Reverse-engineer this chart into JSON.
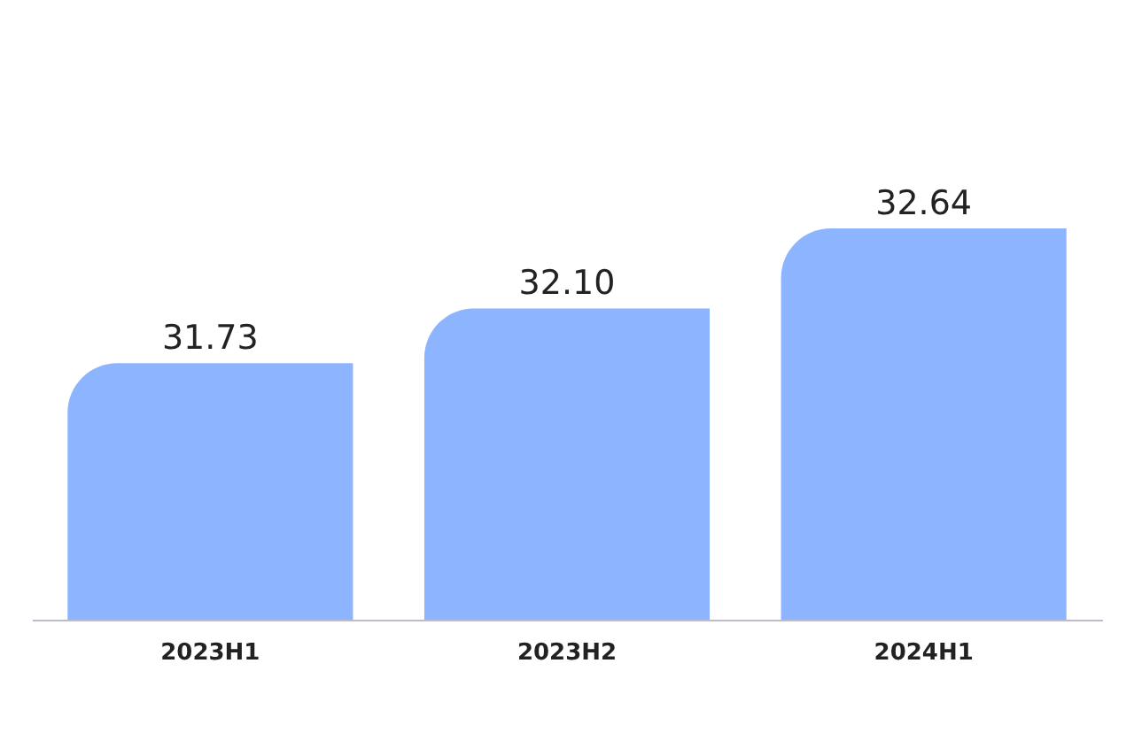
{
  "chart_data": {
    "type": "bar",
    "categories": [
      "2023H1",
      "2023H2",
      "2024H1"
    ],
    "values": [
      31.73,
      32.1,
      32.64
    ],
    "value_labels": [
      "31.73",
      "32.10",
      "32.64"
    ],
    "color": "#8db4ff",
    "ylim": [
      30,
      32.64
    ],
    "tick_labels": "x",
    "grid": false
  }
}
